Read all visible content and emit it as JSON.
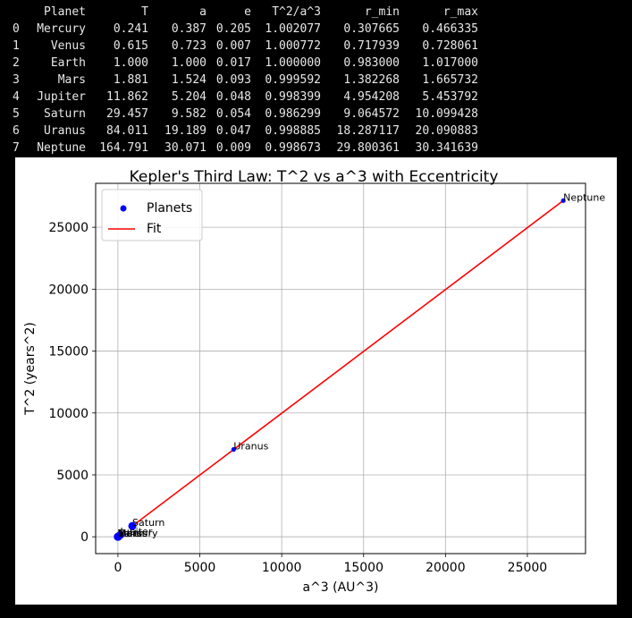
{
  "dataframe": {
    "columns": [
      "",
      "Planet",
      "T",
      "a",
      "e",
      "T^2/a^3",
      "r_min",
      "r_max"
    ],
    "rows": [
      [
        "0",
        "Mercury",
        "0.241",
        "0.387",
        "0.205",
        "1.002077",
        "0.307665",
        "0.466335"
      ],
      [
        "1",
        "Venus",
        "0.615",
        "0.723",
        "0.007",
        "1.000772",
        "0.717939",
        "0.728061"
      ],
      [
        "2",
        "Earth",
        "1.000",
        "1.000",
        "0.017",
        "1.000000",
        "0.983000",
        "1.017000"
      ],
      [
        "3",
        "Mars",
        "1.881",
        "1.524",
        "0.093",
        "0.999592",
        "1.382268",
        "1.665732"
      ],
      [
        "4",
        "Jupiter",
        "11.862",
        "5.204",
        "0.048",
        "0.998399",
        "4.954208",
        "5.453792"
      ],
      [
        "5",
        "Saturn",
        "29.457",
        "9.582",
        "0.054",
        "0.986299",
        "9.064572",
        "10.099428"
      ],
      [
        "6",
        "Uranus",
        "84.011",
        "19.189",
        "0.047",
        "0.998885",
        "18.287117",
        "20.090883"
      ],
      [
        "7",
        "Neptune",
        "164.791",
        "30.071",
        "0.009",
        "0.998673",
        "29.800361",
        "30.341639"
      ]
    ]
  },
  "chart_data": {
    "type": "scatter",
    "title": "Kepler's Third Law: T^2 vs a^3 with Eccentricity",
    "xlabel": "a^3 (AU^3)",
    "ylabel": "T^2 (years^2)",
    "xlim": [
      -1360,
      28550
    ],
    "ylim": [
      -1360,
      28550
    ],
    "xticks": [
      0,
      5000,
      10000,
      15000,
      20000,
      25000
    ],
    "yticks": [
      0,
      5000,
      10000,
      15000,
      20000,
      25000
    ],
    "grid": true,
    "legend": {
      "placement": "top-left",
      "entries": [
        "Planets",
        "Fit"
      ]
    },
    "series": [
      {
        "name": "Planets",
        "kind": "scatter",
        "color": "#0000ff",
        "points": [
          {
            "label": "Mercury",
            "x": 0.058,
            "y": 0.058
          },
          {
            "label": "Venus",
            "x": 0.378,
            "y": 0.378
          },
          {
            "label": "Earth",
            "x": 1.0,
            "y": 1.0
          },
          {
            "label": "Mars",
            "x": 3.54,
            "y": 3.54
          },
          {
            "label": "Jupiter",
            "x": 140.9,
            "y": 140.7
          },
          {
            "label": "Saturn",
            "x": 879.8,
            "y": 867.7
          },
          {
            "label": "Uranus",
            "x": 7065.7,
            "y": 7057.8
          },
          {
            "label": "Neptune",
            "x": 27191.4,
            "y": 27156.1
          }
        ]
      },
      {
        "name": "Fit",
        "kind": "line",
        "color": "#ff0000",
        "x": [
          879.8,
          27191.4
        ],
        "y": [
          867.7,
          27156.1
        ]
      }
    ]
  }
}
